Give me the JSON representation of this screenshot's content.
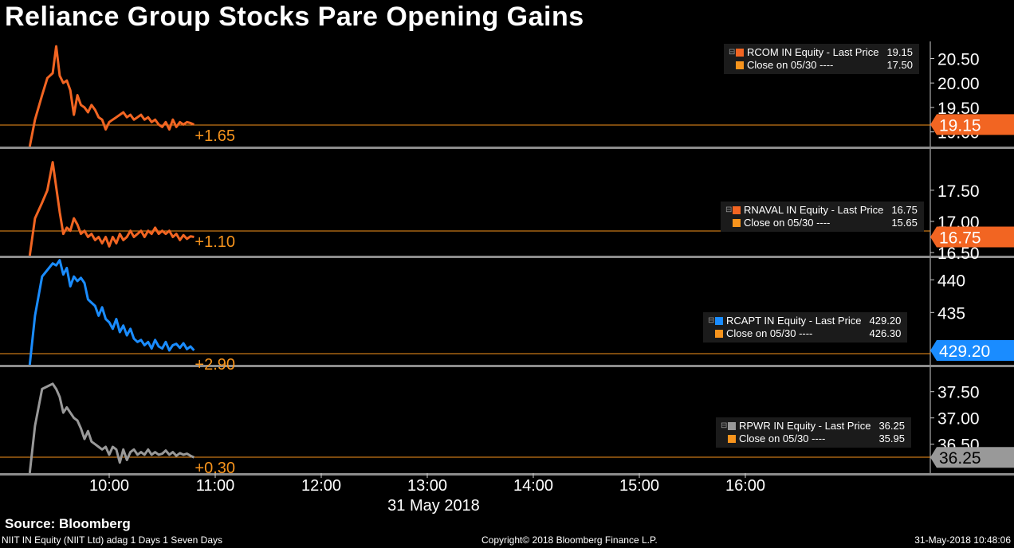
{
  "title": "Reliance Group Stocks Pare Opening Gains",
  "source": "Source: Bloomberg",
  "footer": {
    "left": "NIIT IN Equity (NIIT Ltd) adag 1 Days 1 Seven Days",
    "center": "Copyright© 2018 Bloomberg Finance L.P.",
    "right": "31-May-2018 10:48:06"
  },
  "colors": {
    "background": "#000000",
    "close_line": "#f7941d",
    "separator": "#8c8c8c"
  },
  "chart_data": {
    "type": "line",
    "x_axis": {
      "ticks": [
        "10:00",
        "11:00",
        "12:00",
        "13:00",
        "14:00",
        "15:00",
        "16:00"
      ],
      "label": "31 May 2018"
    },
    "panels": [
      {
        "ticker": "RCOM IN Equity",
        "legend_last": "RCOM IN Equity - Last Price",
        "last_price": "19.15",
        "legend_close": "Close on 05/30 ----",
        "close_price": "17.50",
        "change_label": "+1.65",
        "color": "#f26522",
        "ylim": [
          18.7,
          20.85
        ],
        "yticks": [
          "20.50",
          "20.00",
          "19.50",
          "19.00"
        ],
        "price_badge": "19.15",
        "series": {
          "name": "RCOM IN Equity",
          "x": [
            "09:15",
            "09:18",
            "09:22",
            "09:25",
            "09:28",
            "09:30",
            "09:32",
            "09:34",
            "09:36",
            "09:38",
            "09:40",
            "09:42",
            "09:44",
            "09:46",
            "09:48",
            "09:50",
            "09:52",
            "09:54",
            "09:56",
            "09:58",
            "10:00",
            "10:02",
            "10:04",
            "10:06",
            "10:08",
            "10:10",
            "10:12",
            "10:14",
            "10:16",
            "10:18",
            "10:20",
            "10:22",
            "10:24",
            "10:26",
            "10:28",
            "10:30",
            "10:32",
            "10:34",
            "10:36",
            "10:38",
            "10:40",
            "10:42",
            "10:44",
            "10:46",
            "10:48"
          ],
          "y": [
            18.7,
            19.25,
            19.75,
            20.1,
            20.2,
            20.75,
            20.15,
            20.0,
            20.05,
            19.85,
            19.35,
            19.75,
            19.55,
            19.5,
            19.4,
            19.55,
            19.45,
            19.3,
            19.25,
            19.05,
            19.2,
            19.25,
            19.3,
            19.35,
            19.4,
            19.3,
            19.35,
            19.25,
            19.3,
            19.35,
            19.25,
            19.3,
            19.2,
            19.25,
            19.15,
            19.1,
            19.2,
            19.05,
            19.25,
            19.1,
            19.2,
            19.15,
            19.2,
            19.18,
            19.15
          ]
        }
      },
      {
        "ticker": "RNAVAL IN Equity",
        "legend_last": "RNAVAL IN Equity - Last Price",
        "last_price": "16.75",
        "legend_close": "Close on 05/30 ----",
        "close_price": "15.65",
        "change_label": "+1.10",
        "color": "#f26522",
        "ylim": [
          16.45,
          18.15
        ],
        "yticks": [
          "17.50",
          "17.00",
          "16.50"
        ],
        "price_badge": "16.75",
        "series": {
          "name": "RNAVAL IN Equity",
          "x": [
            "09:15",
            "09:18",
            "09:22",
            "09:25",
            "09:28",
            "09:30",
            "09:32",
            "09:34",
            "09:36",
            "09:38",
            "09:40",
            "09:42",
            "09:44",
            "09:46",
            "09:48",
            "09:50",
            "09:52",
            "09:54",
            "09:56",
            "09:58",
            "10:00",
            "10:02",
            "10:04",
            "10:06",
            "10:08",
            "10:10",
            "10:12",
            "10:14",
            "10:16",
            "10:18",
            "10:20",
            "10:22",
            "10:24",
            "10:26",
            "10:28",
            "10:30",
            "10:32",
            "10:34",
            "10:36",
            "10:38",
            "10:40",
            "10:42",
            "10:44",
            "10:46",
            "10:48"
          ],
          "y": [
            16.45,
            17.05,
            17.3,
            17.5,
            17.95,
            17.55,
            17.15,
            16.8,
            16.9,
            16.85,
            17.05,
            16.95,
            16.8,
            16.85,
            16.75,
            16.8,
            16.7,
            16.75,
            16.65,
            16.75,
            16.6,
            16.75,
            16.65,
            16.8,
            16.7,
            16.75,
            16.85,
            16.75,
            16.8,
            16.85,
            16.75,
            16.85,
            16.8,
            16.9,
            16.8,
            16.85,
            16.8,
            16.85,
            16.75,
            16.8,
            16.7,
            16.78,
            16.72,
            16.76,
            16.75
          ]
        }
      },
      {
        "ticker": "RCAPT IN Equity",
        "legend_last": "RCAPT IN Equity - Last Price",
        "last_price": "429.20",
        "legend_close": "Close on 05/30 ----",
        "close_price": "426.30",
        "change_label": "+2.90",
        "color": "#1a8cff",
        "ylim": [
          427.0,
          443.2
        ],
        "yticks": [
          "440",
          "435"
        ],
        "price_badge": "429.20",
        "series": {
          "name": "RCAPT IN Equity",
          "x": [
            "09:15",
            "09:18",
            "09:22",
            "09:25",
            "09:28",
            "09:30",
            "09:32",
            "09:34",
            "09:36",
            "09:38",
            "09:40",
            "09:42",
            "09:44",
            "09:46",
            "09:48",
            "09:50",
            "09:52",
            "09:54",
            "09:56",
            "09:58",
            "10:00",
            "10:02",
            "10:04",
            "10:06",
            "10:08",
            "10:10",
            "10:12",
            "10:14",
            "10:16",
            "10:18",
            "10:20",
            "10:22",
            "10:24",
            "10:26",
            "10:28",
            "10:30",
            "10:32",
            "10:34",
            "10:36",
            "10:38",
            "10:40",
            "10:42",
            "10:44",
            "10:46",
            "10:48"
          ],
          "y": [
            427.0,
            434.5,
            440.5,
            441.5,
            442.5,
            442.2,
            443.0,
            440.8,
            441.8,
            439.0,
            440.5,
            439.8,
            440.3,
            439.5,
            437.0,
            436.5,
            436.0,
            434.5,
            435.8,
            434.0,
            433.5,
            432.5,
            434.0,
            432.0,
            433.0,
            431.5,
            432.5,
            431.0,
            430.5,
            430.8,
            430.0,
            430.5,
            429.5,
            430.8,
            429.8,
            429.5,
            430.5,
            429.2,
            430.0,
            430.2,
            429.6,
            430.3,
            429.4,
            429.8,
            429.2
          ]
        }
      },
      {
        "ticker": "RPWR IN Equity",
        "legend_last": "RPWR IN Equity - Last Price",
        "last_price": "36.25",
        "legend_close": "Close on 05/30 ----",
        "close_price": "35.95",
        "change_label": "+0.30",
        "color": "#999999",
        "ylim": [
          35.95,
          37.95
        ],
        "yticks": [
          "37.50",
          "37.00",
          "36.50"
        ],
        "price_badge": "36.25",
        "series": {
          "name": "RPWR IN Equity",
          "x": [
            "09:15",
            "09:18",
            "09:22",
            "09:25",
            "09:28",
            "09:30",
            "09:32",
            "09:34",
            "09:36",
            "09:38",
            "09:40",
            "09:42",
            "09:44",
            "09:46",
            "09:48",
            "09:50",
            "09:52",
            "09:54",
            "09:56",
            "09:58",
            "10:00",
            "10:02",
            "10:04",
            "10:06",
            "10:08",
            "10:10",
            "10:12",
            "10:14",
            "10:16",
            "10:18",
            "10:20",
            "10:22",
            "10:24",
            "10:26",
            "10:28",
            "10:30",
            "10:32",
            "10:34",
            "10:36",
            "10:38",
            "10:40",
            "10:42",
            "10:44",
            "10:46",
            "10:48"
          ],
          "y": [
            35.95,
            36.85,
            37.55,
            37.6,
            37.65,
            37.55,
            37.4,
            37.1,
            37.2,
            37.1,
            37.0,
            36.95,
            36.8,
            36.6,
            36.75,
            36.55,
            36.5,
            36.45,
            36.4,
            36.45,
            36.3,
            36.45,
            36.4,
            36.15,
            36.4,
            36.2,
            36.35,
            36.4,
            36.3,
            36.35,
            36.3,
            36.4,
            36.3,
            36.35,
            36.3,
            36.32,
            36.38,
            36.3,
            36.35,
            36.28,
            36.33,
            36.3,
            36.32,
            36.28,
            36.25
          ]
        }
      }
    ]
  }
}
